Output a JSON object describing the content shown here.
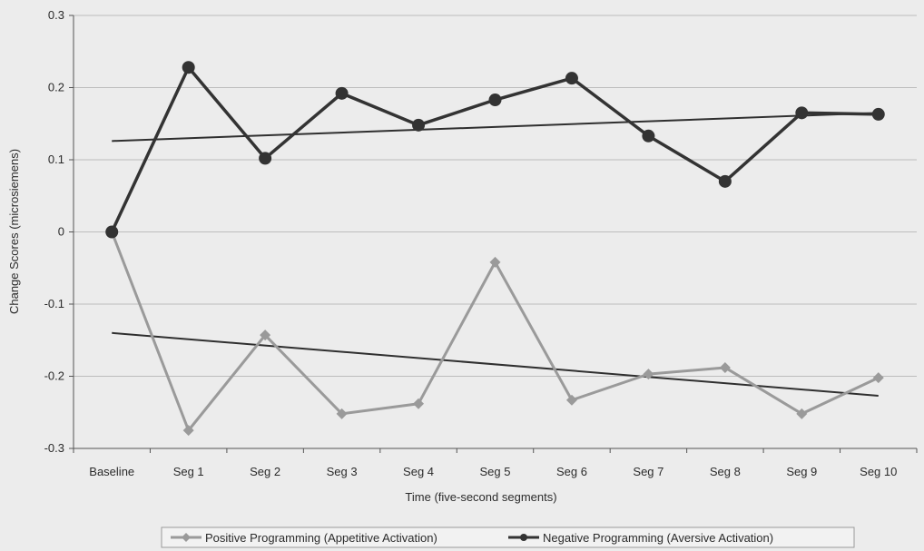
{
  "chart_data": {
    "type": "line",
    "xlabel": "Time (five-second segments)",
    "ylabel": "Change Scores (microsiemens)",
    "categories": [
      "Baseline",
      "Seg 1",
      "Seg 2",
      "Seg 3",
      "Seg 4",
      "Seg 5",
      "Seg 6",
      "Seg 7",
      "Seg 8",
      "Seg 9",
      "Seg 10"
    ],
    "ylim": [
      -0.3,
      0.3
    ],
    "yticks": [
      0.3,
      0.2,
      0.1,
      0,
      -0.1,
      -0.2,
      -0.3
    ],
    "ytick_labels": [
      "0.3",
      "0.2",
      "0.1",
      "0",
      "-0.1",
      "-0.2",
      "-0.3"
    ],
    "grid": true,
    "legend_position": "bottom",
    "series": [
      {
        "name": "Positive Programming (Appetitive Activation)",
        "marker": "diamond",
        "color": "#9a9a9a",
        "values": [
          0,
          -0.275,
          -0.143,
          -0.252,
          -0.238,
          -0.042,
          -0.233,
          -0.197,
          -0.188,
          -0.252,
          -0.202
        ],
        "trendline": [
          -0.14,
          -0.227
        ]
      },
      {
        "name": "Negative Programming (Aversive Activation)",
        "marker": "circle",
        "color": "#333333",
        "values": [
          0,
          0.228,
          0.102,
          0.192,
          0.148,
          0.183,
          0.213,
          0.133,
          0.07,
          0.165,
          0.163
        ],
        "trendline": [
          0.126,
          0.165
        ]
      }
    ]
  }
}
